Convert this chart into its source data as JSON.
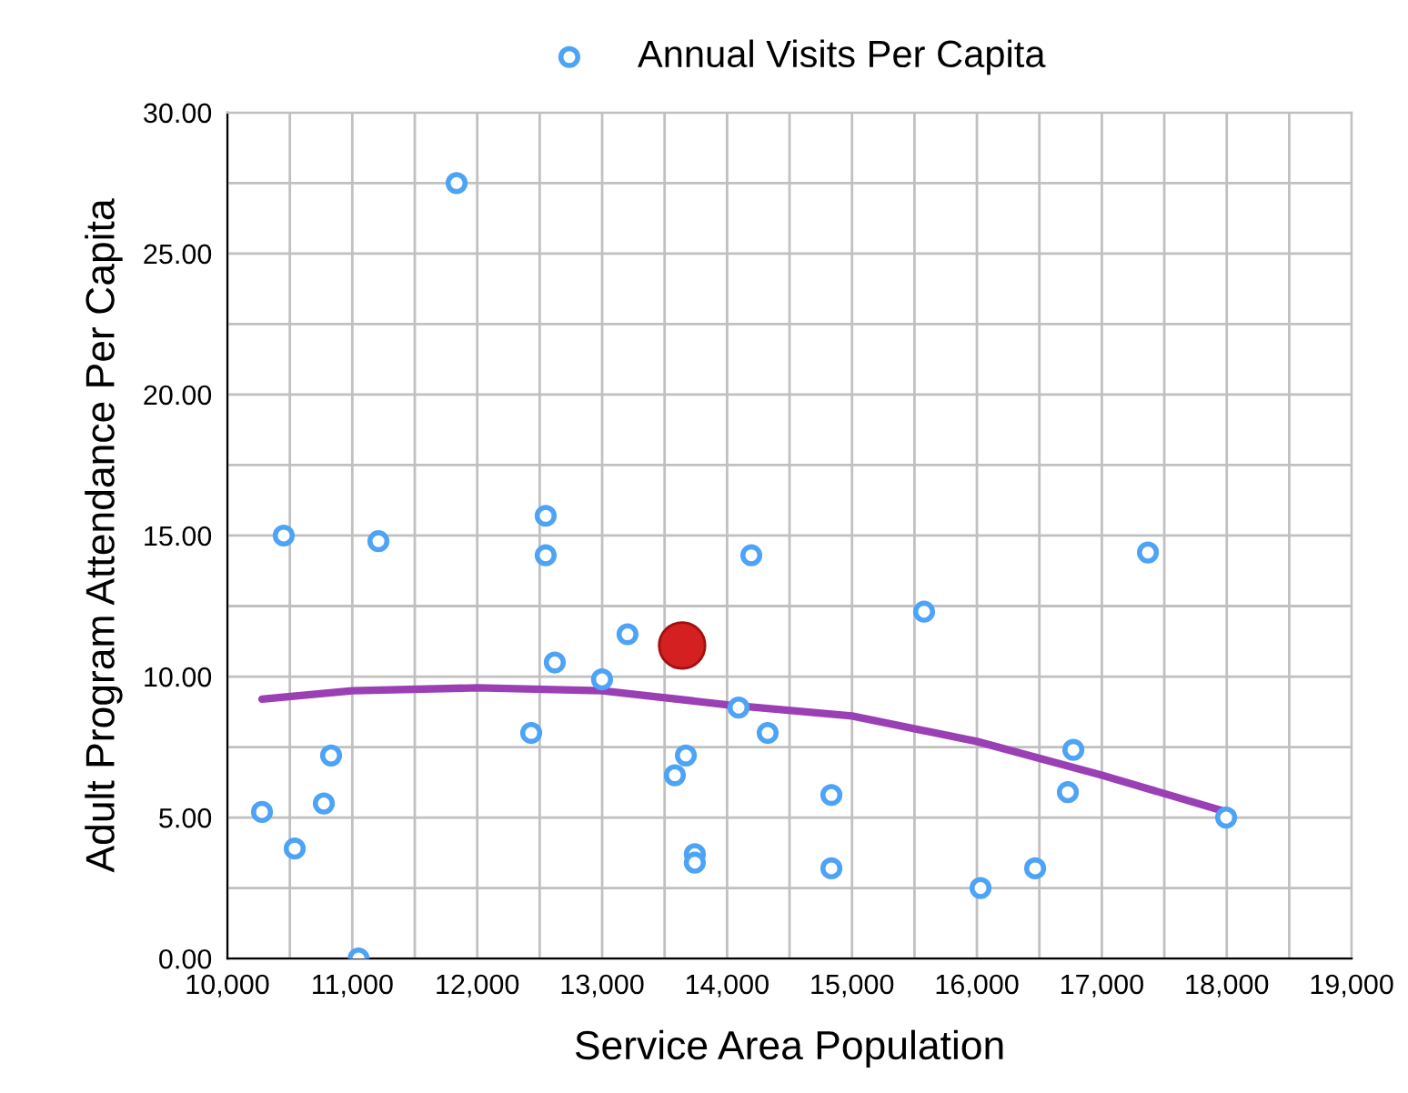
{
  "chart_data": {
    "type": "scatter",
    "xlabel": "Service Area Population",
    "ylabel": "Adult Program Attendance Per Capita",
    "legend": "top",
    "grid": true,
    "xlim": [
      10000,
      19000
    ],
    "ylim": [
      0,
      30
    ],
    "xticks": [
      {
        "value": 10000,
        "label": "10,000"
      },
      {
        "value": 10500,
        "label": null
      },
      {
        "value": 11000,
        "label": "11,000"
      },
      {
        "value": 11500,
        "label": null
      },
      {
        "value": 12000,
        "label": "12,000"
      },
      {
        "value": 12500,
        "label": null
      },
      {
        "value": 13000,
        "label": "13,000"
      },
      {
        "value": 13500,
        "label": null
      },
      {
        "value": 14000,
        "label": "14,000"
      },
      {
        "value": 14500,
        "label": null
      },
      {
        "value": 15000,
        "label": "15,000"
      },
      {
        "value": 15500,
        "label": null
      },
      {
        "value": 16000,
        "label": "16,000"
      },
      {
        "value": 16500,
        "label": null
      },
      {
        "value": 17000,
        "label": "17,000"
      },
      {
        "value": 17500,
        "label": null
      },
      {
        "value": 18000,
        "label": "18,000"
      },
      {
        "value": 18500,
        "label": null
      },
      {
        "value": 19000,
        "label": "19,000"
      }
    ],
    "yticks": [
      {
        "value": 0,
        "label": "0.00"
      },
      {
        "value": 2.5,
        "label": null
      },
      {
        "value": 5,
        "label": "5.00"
      },
      {
        "value": 7.5,
        "label": null
      },
      {
        "value": 10,
        "label": "10.00"
      },
      {
        "value": 12.5,
        "label": null
      },
      {
        "value": 15,
        "label": "15.00"
      },
      {
        "value": 17.5,
        "label": null
      },
      {
        "value": 20,
        "label": "20.00"
      },
      {
        "value": 22.5,
        "label": null
      },
      {
        "value": 25,
        "label": "25.00"
      },
      {
        "value": 27.5,
        "label": null
      },
      {
        "value": 30,
        "label": "30.00"
      }
    ],
    "series": [
      {
        "name": "Annual Visits Per Capita",
        "marker": "circle",
        "color": "#4da3f5",
        "x": [
          10277,
          10451,
          10539,
          10772,
          10830,
          11050,
          11209,
          11835,
          12432,
          12548,
          12548,
          12621,
          12999,
          13203,
          13582,
          13670,
          13742,
          13742,
          14092,
          14194,
          14325,
          14835,
          14835,
          15577,
          16029,
          16466,
          16728,
          16772,
          17369,
          17995
        ],
        "values": [
          5.2,
          15.0,
          3.9,
          5.5,
          7.2,
          0.0,
          14.8,
          27.5,
          8.0,
          15.7,
          14.3,
          10.5,
          9.9,
          11.5,
          6.5,
          7.2,
          3.7,
          3.4,
          8.9,
          14.3,
          8.0,
          5.8,
          3.2,
          12.3,
          2.5,
          3.2,
          5.9,
          7.4,
          14.4,
          5.0
        ]
      },
      {
        "type": "line",
        "color": "#9b3fb5",
        "x": [
          10277,
          11000,
          12000,
          13000,
          14000,
          15000,
          16000,
          17000,
          18000
        ],
        "values": [
          9.2,
          9.5,
          9.6,
          9.5,
          9.0,
          8.6,
          7.7,
          6.5,
          5.2
        ]
      },
      {
        "type": "scatter",
        "marker": "circle",
        "color": "#d42020",
        "x": [
          13640
        ],
        "values": [
          11.1
        ]
      }
    ]
  }
}
